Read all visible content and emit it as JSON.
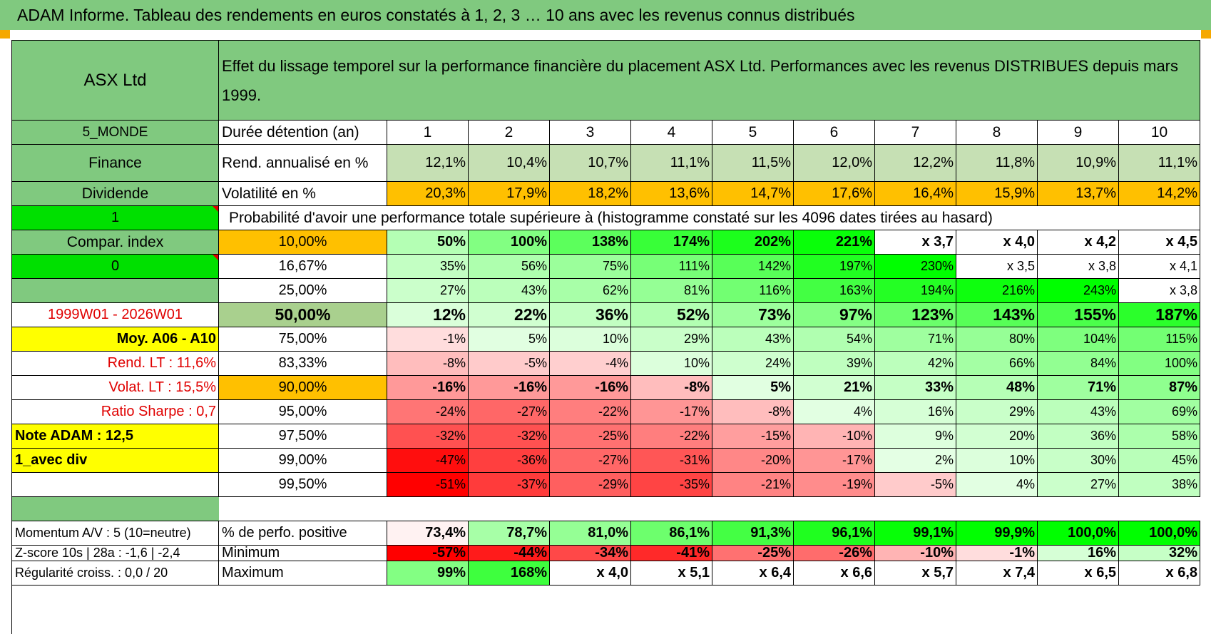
{
  "header_title": "ADAM Informe. Tableau des rendements en euros constatés à 1, 2, 3 … 10 ans avec les revenus connus distribués",
  "colors": {
    "green_header": "#80c97f",
    "bright_green": "#00e000",
    "yellow": "#ffff00",
    "orange": "#ffc000",
    "red_text": "#e00000"
  },
  "left": {
    "asset_name": "ASX Ltd",
    "zone": "5_MONDE",
    "sector": "Finance",
    "type": "Dividende",
    "flag1": "1",
    "compar_index": "Compar. index",
    "flag0": "0",
    "blank": "",
    "period": "1999W01 - 2026W01",
    "avg": "Moy. A06 - A10",
    "rend_lt": "Rend. LT :    11,6%",
    "volat_lt": "Volat. LT :    15,5%",
    "sharpe": "Ratio Sharpe :     0,7",
    "note": "Note ADAM : 12,5",
    "variant": "1_avec div",
    "blank2": ""
  },
  "description": "Effet du lissage temporel sur la performance financière du placement ASX Ltd. Performances avec les revenus DISTRIBUES depuis mars 1999.",
  "duration": {
    "label": "Durée détention (an)",
    "years": [
      "1",
      "2",
      "3",
      "4",
      "5",
      "6",
      "7",
      "8",
      "9",
      "10"
    ]
  },
  "rendement": {
    "label": "Rend. annualisé en %",
    "values": [
      "12,1%",
      "10,4%",
      "10,7%",
      "11,1%",
      "11,5%",
      "12,0%",
      "12,2%",
      "11,8%",
      "10,9%",
      "11,1%"
    ]
  },
  "volatilite": {
    "label": "Volatilité en %",
    "values": [
      "20,3%",
      "17,9%",
      "18,2%",
      "13,6%",
      "14,7%",
      "17,6%",
      "16,4%",
      "15,9%",
      "13,7%",
      "14,2%"
    ]
  },
  "probability_title": "Probabilité d'avoir une performance totale supérieure à (histogramme constaté sur les 4096 dates tirées au hasard)",
  "quantiles": [
    {
      "p": "10,00%",
      "values": [
        "50%",
        "100%",
        "138%",
        "174%",
        "202%",
        "221%",
        "x 3,7",
        "x 4,0",
        "x 4,2",
        "x 4,5"
      ]
    },
    {
      "p": "16,67%",
      "values": [
        "35%",
        "56%",
        "75%",
        "111%",
        "142%",
        "197%",
        "230%",
        "x 3,5",
        "x 3,8",
        "x 4,1"
      ]
    },
    {
      "p": "25,00%",
      "values": [
        "27%",
        "43%",
        "62%",
        "81%",
        "116%",
        "163%",
        "194%",
        "216%",
        "243%",
        "x 3,8"
      ]
    },
    {
      "p": "50,00%",
      "values": [
        "12%",
        "22%",
        "36%",
        "52%",
        "73%",
        "97%",
        "123%",
        "143%",
        "155%",
        "187%"
      ]
    },
    {
      "p": "75,00%",
      "values": [
        "-1%",
        "5%",
        "10%",
        "29%",
        "43%",
        "54%",
        "71%",
        "80%",
        "104%",
        "115%"
      ]
    },
    {
      "p": "83,33%",
      "values": [
        "-8%",
        "-5%",
        "-4%",
        "10%",
        "24%",
        "39%",
        "42%",
        "66%",
        "84%",
        "100%"
      ]
    },
    {
      "p": "90,00%",
      "values": [
        "-16%",
        "-16%",
        "-16%",
        "-8%",
        "5%",
        "21%",
        "33%",
        "48%",
        "71%",
        "87%"
      ]
    },
    {
      "p": "95,00%",
      "values": [
        "-24%",
        "-27%",
        "-22%",
        "-17%",
        "-8%",
        "4%",
        "16%",
        "29%",
        "43%",
        "69%"
      ]
    },
    {
      "p": "97,50%",
      "values": [
        "-32%",
        "-32%",
        "-25%",
        "-22%",
        "-15%",
        "-10%",
        "9%",
        "20%",
        "36%",
        "58%"
      ]
    },
    {
      "p": "99,00%",
      "values": [
        "-47%",
        "-36%",
        "-27%",
        "-31%",
        "-20%",
        "-17%",
        "2%",
        "10%",
        "30%",
        "45%"
      ]
    },
    {
      "p": "99,50%",
      "values": [
        "-51%",
        "-37%",
        "-29%",
        "-35%",
        "-21%",
        "-19%",
        "-5%",
        "4%",
        "27%",
        "38%"
      ]
    }
  ],
  "bottom": {
    "momentum": "Momentum A/V : 5 (10=neutre)",
    "zscore": "Z-score 10s | 28a : -1,6 | -2,4",
    "regularite": "Régularité croiss. : 0,0 / 20",
    "positive": {
      "label": "% de perfo. positive",
      "values": [
        "73,4%",
        "78,7%",
        "81,0%",
        "86,1%",
        "91,3%",
        "96,1%",
        "99,1%",
        "99,9%",
        "100,0%",
        "100,0%"
      ]
    },
    "minimum": {
      "label": "Minimum",
      "values": [
        "-57%",
        "-44%",
        "-34%",
        "-41%",
        "-25%",
        "-26%",
        "-10%",
        "-1%",
        "16%",
        "32%"
      ]
    },
    "maximum": {
      "label": "Maximum",
      "values": [
        "99%",
        "168%",
        "x 4,0",
        "x 5,1",
        "x 6,4",
        "x 6,6",
        "x 5,7",
        "x 7,4",
        "x 6,5",
        "x 6,8"
      ]
    }
  }
}
